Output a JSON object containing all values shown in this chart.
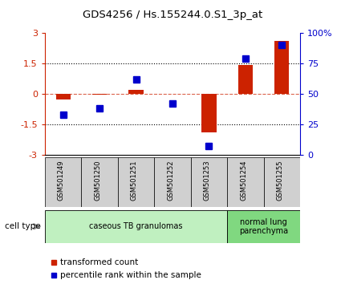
{
  "title": "GDS4256 / Hs.155244.0.S1_3p_at",
  "samples": [
    "GSM501249",
    "GSM501250",
    "GSM501251",
    "GSM501252",
    "GSM501253",
    "GSM501254",
    "GSM501255"
  ],
  "red_values": [
    -0.3,
    -0.05,
    0.2,
    0.0,
    -1.9,
    1.4,
    2.6
  ],
  "blue_values": [
    33,
    38,
    62,
    42,
    7,
    79,
    90
  ],
  "ylim": [
    -3,
    3
  ],
  "yticks_red": [
    -3,
    -1.5,
    0,
    1.5,
    3
  ],
  "ytick_labels_red": [
    "-3",
    "-1.5",
    "0",
    "1.5",
    "3"
  ],
  "ytick_labels_blue": [
    "0",
    "25",
    "50",
    "75",
    "100%"
  ],
  "red_color": "#cc2200",
  "blue_color": "#0000cc",
  "bar_width": 0.4,
  "legend_red": "transformed count",
  "legend_blue": "percentile rank within the sample",
  "cell_type_label": "cell type",
  "bg_xlabel": "#cccccc",
  "bg_group1": "#c0f0c0",
  "bg_group2": "#80d880"
}
